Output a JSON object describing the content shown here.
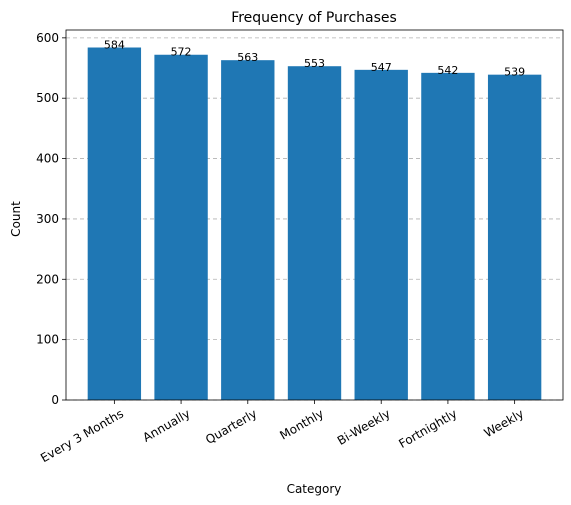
{
  "chart_data": {
    "type": "bar",
    "title": "Frequency of Purchases",
    "xlabel": "Category",
    "ylabel": "Count",
    "categories": [
      "Every 3 Months",
      "Annually",
      "Quarterly",
      "Monthly",
      "Bi-Weekly",
      "Fortnightly",
      "Weekly"
    ],
    "values": [
      584,
      572,
      563,
      553,
      547,
      542,
      539
    ],
    "data_labels": [
      "584",
      "572",
      "563",
      "553",
      "547",
      "542",
      "539"
    ],
    "ylim": [
      0,
      613
    ],
    "yticks": [
      0,
      100,
      200,
      300,
      400,
      500,
      600
    ],
    "ytick_labels": [
      "0",
      "100",
      "200",
      "300",
      "400",
      "500",
      "600"
    ],
    "grid": "y-dashed",
    "bar_color": "#1f77b4"
  }
}
